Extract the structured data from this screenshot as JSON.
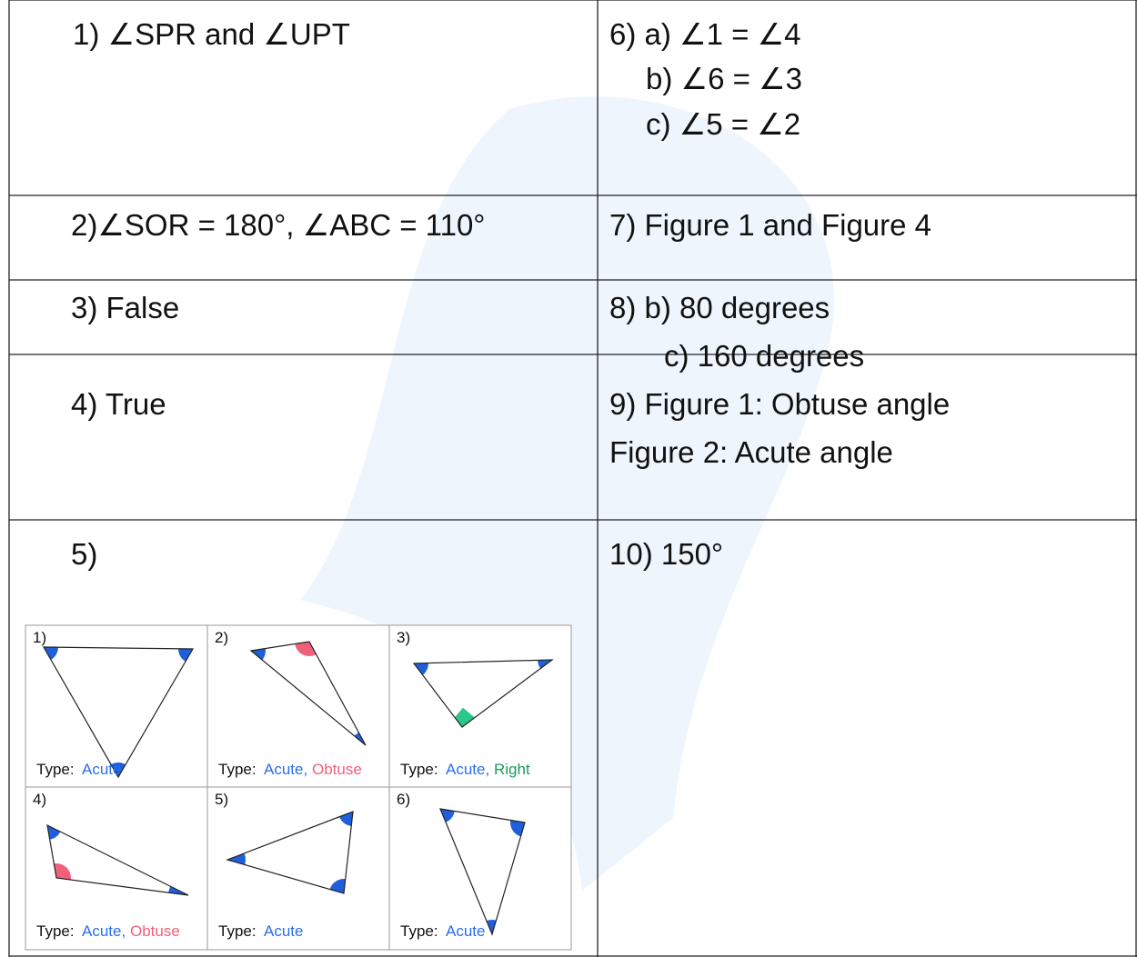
{
  "table": {
    "rows": [
      [
        {
          "lines": [
            "1) ∠SPR and ∠UPT"
          ]
        },
        {
          "lines": [
            "6) a) ∠1 = ∠4",
            "b) ∠6 = ∠3",
            "c) ∠5 = ∠2"
          ]
        }
      ],
      [
        {
          "lines": [
            "2)∠SOR = 180°, ∠ABC = 110°"
          ]
        },
        {
          "lines": [
            "7) Figure 1 and Figure 4"
          ]
        }
      ],
      [
        {
          "lines": [
            "3) False"
          ]
        },
        {
          "lines": [
            "8) b) 80 degrees",
            "c) 160 degrees"
          ]
        }
      ],
      [
        {
          "lines": [
            "4) True"
          ]
        },
        {
          "lines": [
            "9) Figure 1: Obtuse angle",
            "Figure 2: Acute angle"
          ]
        }
      ],
      [
        {
          "lines": [
            "5)"
          ]
        },
        {
          "lines": [
            "10) 150°"
          ]
        }
      ]
    ]
  },
  "triangles": [
    {
      "number": "1)",
      "type_label": "Type:",
      "types": [
        "Acute"
      ]
    },
    {
      "number": "2)",
      "type_label": "Type:",
      "types": [
        "Acute,",
        "Obtuse"
      ]
    },
    {
      "number": "3)",
      "type_label": "Type:",
      "types": [
        "Acute,",
        "Right"
      ]
    },
    {
      "number": "4)",
      "type_label": "Type:",
      "types": [
        "Acute,",
        "Obtuse"
      ]
    },
    {
      "number": "5)",
      "type_label": "Type:",
      "types": [
        "Acute"
      ]
    },
    {
      "number": "6)",
      "type_label": "Type:",
      "types": [
        "Acute"
      ]
    }
  ]
}
